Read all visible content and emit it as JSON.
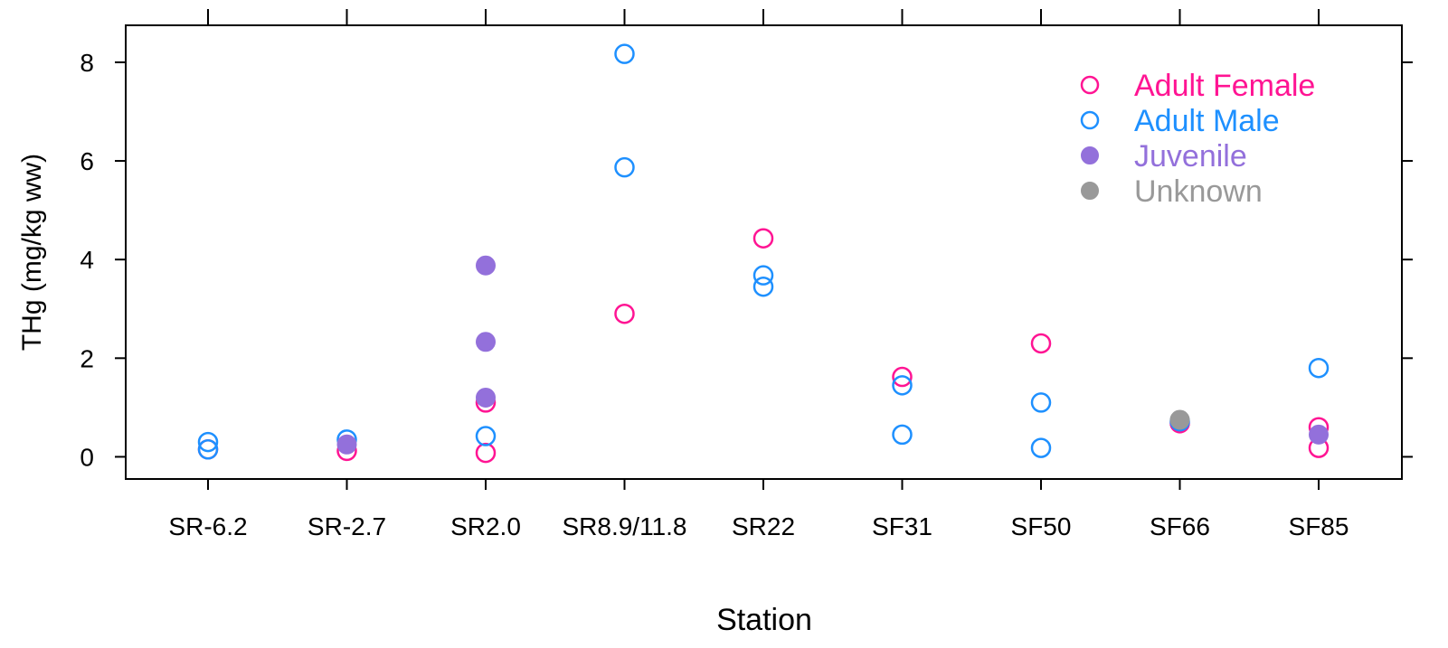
{
  "chart_data": {
    "type": "scatter",
    "title": "",
    "xlabel": "Station",
    "ylabel": "THg (mg/kg ww)",
    "categories": [
      "SR-6.2",
      "SR-2.7",
      "SR2.0",
      "SR8.9/11.8",
      "SR22",
      "SF31",
      "SF50",
      "SF66",
      "SF85"
    ],
    "ylim": [
      -0.45,
      8.75
    ],
    "yticks": [
      0,
      2,
      4,
      6,
      8
    ],
    "grid": false,
    "legend_position": "top-right",
    "series": [
      {
        "name": "Adult Female",
        "color": "#FF1493",
        "filled": false,
        "points": [
          {
            "x": "SR-6.2",
            "y": 0.15
          },
          {
            "x": "SR-2.7",
            "y": 0.12
          },
          {
            "x": "SR2.0",
            "y": 1.1
          },
          {
            "x": "SR2.0",
            "y": 0.08
          },
          {
            "x": "SR8.9/11.8",
            "y": 2.9
          },
          {
            "x": "SR22",
            "y": 4.43
          },
          {
            "x": "SF31",
            "y": 1.62
          },
          {
            "x": "SF50",
            "y": 2.3
          },
          {
            "x": "SF66",
            "y": 0.68
          },
          {
            "x": "SF85",
            "y": 0.6
          },
          {
            "x": "SF85",
            "y": 0.18
          }
        ]
      },
      {
        "name": "Adult Male",
        "color": "#1E90FF",
        "filled": false,
        "points": [
          {
            "x": "SR-6.2",
            "y": 0.3
          },
          {
            "x": "SR-6.2",
            "y": 0.15
          },
          {
            "x": "SR-2.7",
            "y": 0.35
          },
          {
            "x": "SR2.0",
            "y": 0.42
          },
          {
            "x": "SR8.9/11.8",
            "y": 8.17
          },
          {
            "x": "SR8.9/11.8",
            "y": 5.87
          },
          {
            "x": "SR22",
            "y": 3.68
          },
          {
            "x": "SR22",
            "y": 3.45
          },
          {
            "x": "SF31",
            "y": 1.45
          },
          {
            "x": "SF31",
            "y": 0.45
          },
          {
            "x": "SF50",
            "y": 1.1
          },
          {
            "x": "SF50",
            "y": 0.18
          },
          {
            "x": "SF66",
            "y": 0.72
          },
          {
            "x": "SF85",
            "y": 1.8
          }
        ]
      },
      {
        "name": "Juvenile",
        "color": "#9370DB",
        "filled": true,
        "points": [
          {
            "x": "SR-2.7",
            "y": 0.25
          },
          {
            "x": "SR2.0",
            "y": 3.88
          },
          {
            "x": "SR2.0",
            "y": 2.33
          },
          {
            "x": "SR2.0",
            "y": 1.2
          },
          {
            "x": "SF85",
            "y": 0.45
          }
        ]
      },
      {
        "name": "Unknown",
        "color": "#999999",
        "filled": true,
        "points": [
          {
            "x": "SF66",
            "y": 0.75
          }
        ]
      }
    ]
  }
}
